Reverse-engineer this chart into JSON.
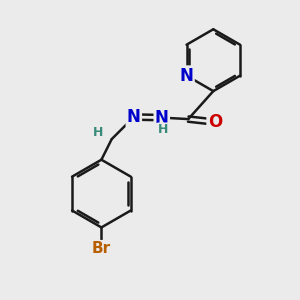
{
  "bg_color": "#ebebeb",
  "bond_color": "#1a1a1a",
  "bond_width": 1.8,
  "atom_colors": {
    "N": "#0000cc",
    "O": "#cc0000",
    "Br": "#b86000",
    "H": "#3a8a7a",
    "C": "#1a1a1a"
  },
  "font_size_atoms": 11,
  "font_size_H": 9,
  "font_size_Br": 11
}
